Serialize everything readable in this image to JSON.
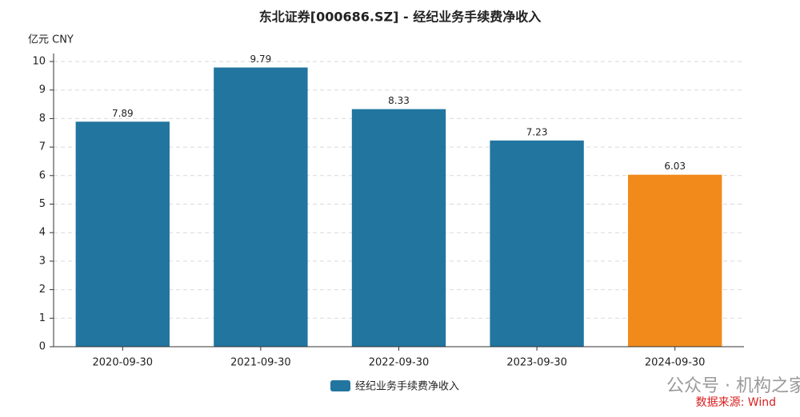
{
  "chart_data": {
    "type": "bar",
    "title": "东北证券[000686.SZ] - 经纪业务手续费净收入",
    "y_axis_label": "亿元  CNY",
    "categories": [
      "2020-09-30",
      "2021-09-30",
      "2022-09-30",
      "2023-09-30",
      "2024-09-30"
    ],
    "series": [
      {
        "name": "经纪业务手续费净收入",
        "color": "#21759f",
        "values": [
          7.89,
          9.79,
          8.33,
          7.23,
          6.03
        ],
        "bar_colors": [
          "#21759f",
          "#21759f",
          "#21759f",
          "#21759f",
          "#f28a1b"
        ]
      }
    ],
    "ylim": [
      0,
      10
    ],
    "yticks": [
      0,
      1,
      2,
      3,
      4,
      5,
      6,
      7,
      8,
      9,
      10
    ],
    "grid": true,
    "watermark": "公众号 · 机构之家",
    "source": "数据来源: Wind"
  }
}
